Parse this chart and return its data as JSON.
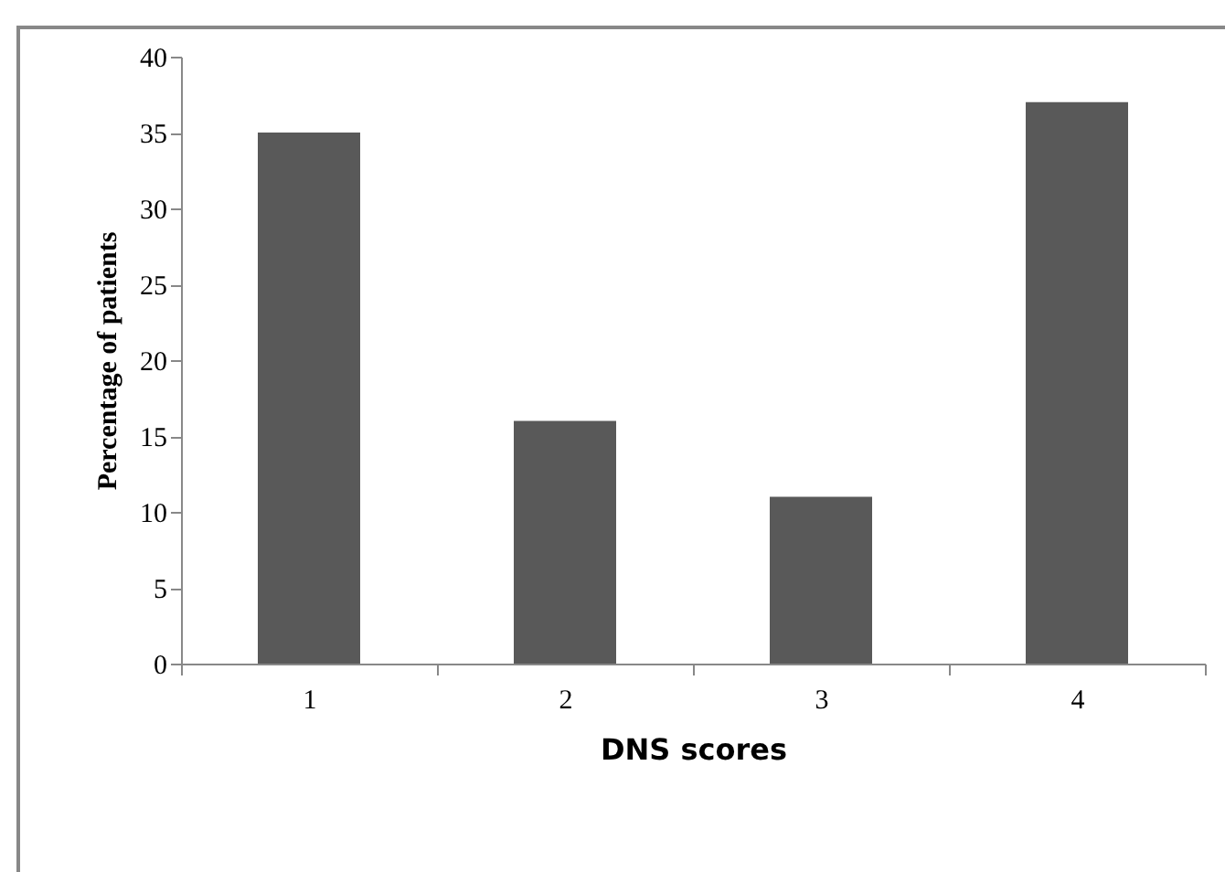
{
  "chart_data": {
    "type": "bar",
    "xlabel": "DNS scores",
    "ylabel": "Percentage of patients",
    "categories": [
      "1",
      "2",
      "3",
      "4"
    ],
    "values": [
      35,
      16,
      11,
      37
    ],
    "color": "#595959",
    "ylim": [
      0,
      40
    ],
    "yticks": [
      0,
      5,
      10,
      15,
      20,
      25,
      30,
      35,
      40
    ],
    "grid": false
  }
}
